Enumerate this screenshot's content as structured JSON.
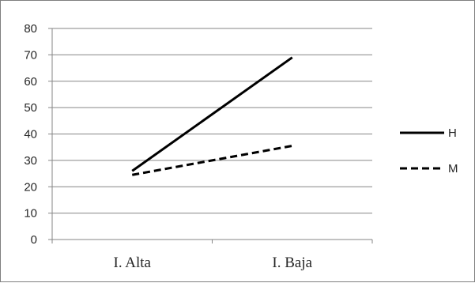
{
  "chart_data": {
    "type": "line",
    "categories": [
      "I. Alta",
      "I. Baja"
    ],
    "ylim": [
      0,
      80
    ],
    "yticks": [
      0,
      10,
      20,
      30,
      40,
      50,
      60,
      70,
      80
    ],
    "grid": true,
    "legend_position": "right",
    "series": [
      {
        "name": "H",
        "values": [
          26,
          69
        ],
        "line_style": "solid",
        "color": "#000000"
      },
      {
        "name": "M",
        "values": [
          24.5,
          35.5
        ],
        "line_style": "dashed",
        "color": "#000000"
      }
    ],
    "colors": {
      "gridline": "#868686",
      "axis": "#868686",
      "text": "#262626"
    }
  }
}
